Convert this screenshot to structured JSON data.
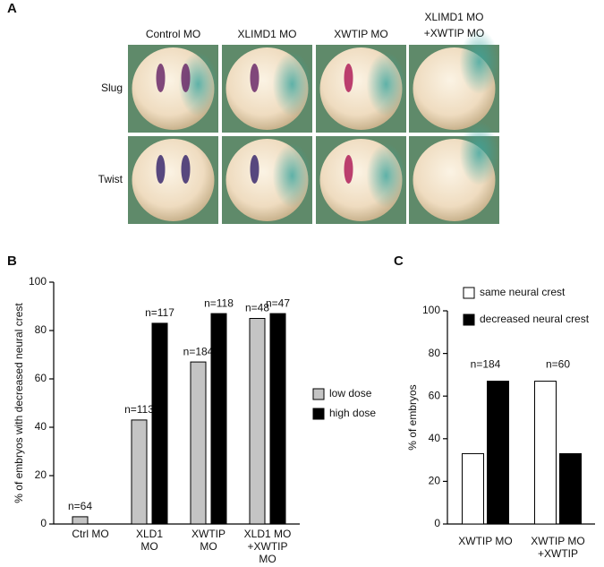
{
  "panels": [
    "A",
    "B",
    "C"
  ],
  "panel_a": {
    "columns": [
      [
        "Control MO"
      ],
      [
        "XLIMD1 MO"
      ],
      [
        "XWTIP MO"
      ],
      [
        "XLIMD1 MO",
        "+XWTIP MO"
      ]
    ],
    "rows": [
      "Slug",
      "Twist"
    ]
  },
  "chart_data": [
    {
      "type": "bar",
      "y_label": "% of embryos with decreased neural crest",
      "categories": [
        [
          "Ctrl MO"
        ],
        [
          "XLD1",
          "MO"
        ],
        [
          "XWTIP",
          "MO"
        ],
        [
          "XLD1 MO",
          "+XWTIP",
          "MO"
        ]
      ],
      "series": [
        {
          "name": "low dose",
          "color": "#c4c4c4",
          "values": [
            3,
            43,
            67,
            85
          ],
          "n_labels": [
            "n=64",
            "n=113",
            "n=184",
            "n=48"
          ]
        },
        {
          "name": "high dose",
          "color": "#000000",
          "values": [
            null,
            83,
            87,
            87
          ],
          "n_labels": [
            null,
            "n=117",
            "n=118",
            "n=47"
          ]
        }
      ],
      "ylim": [
        0,
        100
      ],
      "yticks": [
        0,
        20,
        40,
        60,
        80,
        100
      ],
      "legend": "right"
    },
    {
      "type": "bar",
      "y_label": "% of embryos",
      "categories": [
        [
          "XWTIP MO"
        ],
        [
          "XWTIP MO",
          "+XWTIP"
        ]
      ],
      "group_labels": [
        "n=184",
        "n=60"
      ],
      "series": [
        {
          "name": "same neural crest",
          "color": "#ffffff",
          "values": [
            33,
            67
          ]
        },
        {
          "name": "decreased neural crest",
          "color": "#000000",
          "values": [
            67,
            33
          ]
        }
      ],
      "ylim": [
        0,
        100
      ],
      "yticks": [
        0,
        20,
        40,
        60,
        80,
        100
      ],
      "legend": "top"
    }
  ]
}
